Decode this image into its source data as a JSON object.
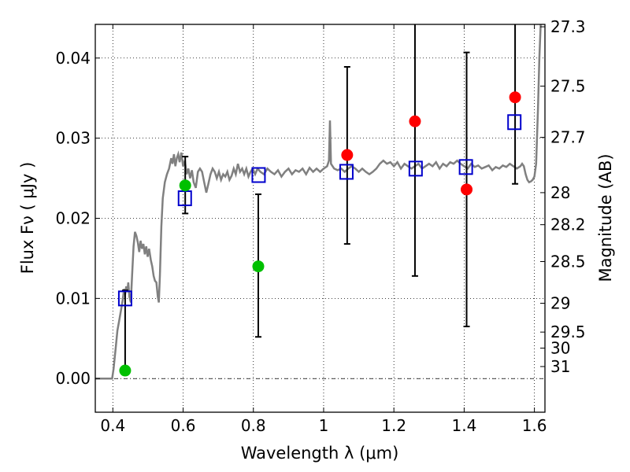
{
  "chart_data": {
    "type": "scatter",
    "title": "",
    "xlabel": "Wavelength  λ (μm)",
    "ylabel": "Flux  Fν  ( μJy )",
    "y2label": "Magnitude (AB)",
    "xlim": [
      0.35,
      1.63
    ],
    "ylim": [
      -0.0042,
      0.0442
    ],
    "grid": true,
    "x_ticks": [
      {
        "value": 0.4,
        "label": "0.4"
      },
      {
        "value": 0.6,
        "label": "0.6"
      },
      {
        "value": 0.8,
        "label": "0.8"
      },
      {
        "value": 1.0,
        "label": "1"
      },
      {
        "value": 1.2,
        "label": "1.2"
      },
      {
        "value": 1.4,
        "label": "1.4"
      },
      {
        "value": 1.6,
        "label": "1.6"
      }
    ],
    "y_ticks": [
      {
        "value": 0.0,
        "label": "0.00"
      },
      {
        "value": 0.01,
        "label": "0.01"
      },
      {
        "value": 0.02,
        "label": "0.02"
      },
      {
        "value": 0.03,
        "label": "0.03"
      },
      {
        "value": 0.04,
        "label": "0.04"
      }
    ],
    "y2_ticks": [
      {
        "label": "27.3",
        "flux": 0.0439
      },
      {
        "label": "27.5",
        "flux": 0.0365
      },
      {
        "label": "27.7",
        "flux": 0.0301
      },
      {
        "label": "28",
        "flux": 0.0232
      },
      {
        "label": "28.2",
        "flux": 0.0192
      },
      {
        "label": "28.5",
        "flux": 0.0146
      },
      {
        "label": "29",
        "flux": 0.0094
      },
      {
        "label": "29.5",
        "flux": 0.0058
      },
      {
        "label": "30",
        "flux": 0.0038
      },
      {
        "label": "31",
        "flux": 0.0015
      }
    ],
    "colors": {
      "model_line": "#808080",
      "observed_point": "#ff0000",
      "observed_point_alt": "#00c000",
      "model_square": "#0000cc",
      "errorbar": "#000000",
      "zero_line": "#000000"
    },
    "model_spectrum": [
      [
        0.35,
        0.0
      ],
      [
        0.38,
        0.0
      ],
      [
        0.398,
        0.0
      ],
      [
        0.402,
        0.0012
      ],
      [
        0.408,
        0.0038
      ],
      [
        0.413,
        0.006
      ],
      [
        0.418,
        0.0072
      ],
      [
        0.423,
        0.0085
      ],
      [
        0.428,
        0.0098
      ],
      [
        0.432,
        0.0112
      ],
      [
        0.435,
        0.0105
      ],
      [
        0.438,
        0.0115
      ],
      [
        0.441,
        0.0108
      ],
      [
        0.444,
        0.012
      ],
      [
        0.447,
        0.0102
      ],
      [
        0.451,
        0.0095
      ],
      [
        0.455,
        0.013
      ],
      [
        0.459,
        0.0165
      ],
      [
        0.463,
        0.0183
      ],
      [
        0.467,
        0.0178
      ],
      [
        0.471,
        0.017
      ],
      [
        0.475,
        0.0158
      ],
      [
        0.479,
        0.0172
      ],
      [
        0.483,
        0.0162
      ],
      [
        0.487,
        0.0168
      ],
      [
        0.491,
        0.0155
      ],
      [
        0.495,
        0.0165
      ],
      [
        0.499,
        0.0152
      ],
      [
        0.503,
        0.0162
      ],
      [
        0.508,
        0.0148
      ],
      [
        0.512,
        0.014
      ],
      [
        0.516,
        0.0128
      ],
      [
        0.52,
        0.0122
      ],
      [
        0.524,
        0.012
      ],
      [
        0.528,
        0.0102
      ],
      [
        0.531,
        0.0095
      ],
      [
        0.534,
        0.013
      ],
      [
        0.538,
        0.019
      ],
      [
        0.542,
        0.0225
      ],
      [
        0.548,
        0.0245
      ],
      [
        0.554,
        0.0255
      ],
      [
        0.56,
        0.0262
      ],
      [
        0.566,
        0.0275
      ],
      [
        0.57,
        0.0268
      ],
      [
        0.574,
        0.028
      ],
      [
        0.578,
        0.0265
      ],
      [
        0.582,
        0.0275
      ],
      [
        0.586,
        0.028
      ],
      [
        0.59,
        0.027
      ],
      [
        0.595,
        0.0282
      ],
      [
        0.6,
        0.0265
      ],
      [
        0.605,
        0.0272
      ],
      [
        0.61,
        0.0255
      ],
      [
        0.615,
        0.0262
      ],
      [
        0.62,
        0.025
      ],
      [
        0.625,
        0.026
      ],
      [
        0.63,
        0.0245
      ],
      [
        0.636,
        0.0238
      ],
      [
        0.642,
        0.0258
      ],
      [
        0.648,
        0.0262
      ],
      [
        0.654,
        0.0258
      ],
      [
        0.66,
        0.0245
      ],
      [
        0.666,
        0.0232
      ],
      [
        0.672,
        0.0243
      ],
      [
        0.678,
        0.0255
      ],
      [
        0.684,
        0.0262
      ],
      [
        0.69,
        0.0258
      ],
      [
        0.696,
        0.025
      ],
      [
        0.702,
        0.0258
      ],
      [
        0.708,
        0.0248
      ],
      [
        0.714,
        0.0255
      ],
      [
        0.72,
        0.0252
      ],
      [
        0.726,
        0.0258
      ],
      [
        0.732,
        0.0248
      ],
      [
        0.738,
        0.0253
      ],
      [
        0.744,
        0.0262
      ],
      [
        0.75,
        0.0255
      ],
      [
        0.756,
        0.0268
      ],
      [
        0.762,
        0.0258
      ],
      [
        0.768,
        0.0262
      ],
      [
        0.774,
        0.0255
      ],
      [
        0.78,
        0.0262
      ],
      [
        0.786,
        0.0252
      ],
      [
        0.792,
        0.0258
      ],
      [
        0.798,
        0.0262
      ],
      [
        0.805,
        0.0255
      ],
      [
        0.812,
        0.0262
      ],
      [
        0.82,
        0.0258
      ],
      [
        0.83,
        0.0255
      ],
      [
        0.84,
        0.0262
      ],
      [
        0.85,
        0.0258
      ],
      [
        0.86,
        0.0255
      ],
      [
        0.87,
        0.026
      ],
      [
        0.88,
        0.0252
      ],
      [
        0.89,
        0.0258
      ],
      [
        0.9,
        0.0262
      ],
      [
        0.91,
        0.0255
      ],
      [
        0.92,
        0.026
      ],
      [
        0.93,
        0.0258
      ],
      [
        0.94,
        0.0262
      ],
      [
        0.95,
        0.0255
      ],
      [
        0.96,
        0.0263
      ],
      [
        0.97,
        0.0258
      ],
      [
        0.98,
        0.0262
      ],
      [
        0.99,
        0.0258
      ],
      [
        1.0,
        0.0262
      ],
      [
        1.01,
        0.0265
      ],
      [
        1.015,
        0.0272
      ],
      [
        1.018,
        0.0322
      ],
      [
        1.021,
        0.0268
      ],
      [
        1.03,
        0.0262
      ],
      [
        1.04,
        0.026
      ],
      [
        1.05,
        0.0262
      ],
      [
        1.06,
        0.0258
      ],
      [
        1.07,
        0.0262
      ],
      [
        1.08,
        0.0265
      ],
      [
        1.09,
        0.0262
      ],
      [
        1.1,
        0.0258
      ],
      [
        1.11,
        0.0262
      ],
      [
        1.12,
        0.0258
      ],
      [
        1.13,
        0.0255
      ],
      [
        1.14,
        0.0258
      ],
      [
        1.15,
        0.0262
      ],
      [
        1.16,
        0.0268
      ],
      [
        1.17,
        0.0272
      ],
      [
        1.18,
        0.0268
      ],
      [
        1.19,
        0.027
      ],
      [
        1.2,
        0.0265
      ],
      [
        1.21,
        0.027
      ],
      [
        1.22,
        0.0262
      ],
      [
        1.23,
        0.0268
      ],
      [
        1.24,
        0.0265
      ],
      [
        1.25,
        0.0262
      ],
      [
        1.26,
        0.0265
      ],
      [
        1.27,
        0.0268
      ],
      [
        1.28,
        0.0262
      ],
      [
        1.29,
        0.0265
      ],
      [
        1.3,
        0.0268
      ],
      [
        1.31,
        0.0265
      ],
      [
        1.32,
        0.027
      ],
      [
        1.33,
        0.0262
      ],
      [
        1.34,
        0.0268
      ],
      [
        1.35,
        0.0265
      ],
      [
        1.36,
        0.027
      ],
      [
        1.37,
        0.0268
      ],
      [
        1.38,
        0.0272
      ],
      [
        1.39,
        0.0268
      ],
      [
        1.4,
        0.0265
      ],
      [
        1.41,
        0.0262
      ],
      [
        1.42,
        0.0268
      ],
      [
        1.43,
        0.0264
      ],
      [
        1.44,
        0.0266
      ],
      [
        1.45,
        0.0262
      ],
      [
        1.46,
        0.0264
      ],
      [
        1.47,
        0.0266
      ],
      [
        1.48,
        0.026
      ],
      [
        1.49,
        0.0264
      ],
      [
        1.5,
        0.0262
      ],
      [
        1.51,
        0.0266
      ],
      [
        1.52,
        0.0264
      ],
      [
        1.53,
        0.0268
      ],
      [
        1.54,
        0.0265
      ],
      [
        1.55,
        0.0262
      ],
      [
        1.56,
        0.0265
      ],
      [
        1.565,
        0.0268
      ],
      [
        1.57,
        0.0265
      ],
      [
        1.575,
        0.0255
      ],
      [
        1.58,
        0.0248
      ],
      [
        1.585,
        0.0245
      ],
      [
        1.59,
        0.0246
      ],
      [
        1.595,
        0.0248
      ],
      [
        1.6,
        0.0252
      ],
      [
        1.605,
        0.0268
      ],
      [
        1.61,
        0.0335
      ],
      [
        1.614,
        0.04
      ],
      [
        1.618,
        0.0442
      ]
    ],
    "observed_points": [
      {
        "x": 0.435,
        "y": 0.001,
        "color": "green",
        "err_low": 0.001,
        "err_high": 0.011
      },
      {
        "x": 0.606,
        "y": 0.0241,
        "color": "green",
        "err_low": 0.0206,
        "err_high": 0.0277
      },
      {
        "x": 0.814,
        "y": 0.014,
        "color": "green",
        "err_low": 0.0052,
        "err_high": 0.023
      },
      {
        "x": 1.067,
        "y": 0.0279,
        "color": "red",
        "err_low": 0.0168,
        "err_high": 0.0389
      },
      {
        "x": 1.26,
        "y": 0.0321,
        "color": "red",
        "err_low": 0.0128,
        "err_high": 0.0442
      },
      {
        "x": 1.407,
        "y": 0.0236,
        "color": "red",
        "err_low": 0.0065,
        "err_high": 0.0407
      },
      {
        "x": 1.545,
        "y": 0.0351,
        "color": "red",
        "err_low": 0.0243,
        "err_high": 0.0442
      }
    ],
    "model_squares": [
      {
        "x": 0.435,
        "y": 0.01
      },
      {
        "x": 0.605,
        "y": 0.0225
      },
      {
        "x": 0.815,
        "y": 0.0254
      },
      {
        "x": 1.065,
        "y": 0.0258
      },
      {
        "x": 1.262,
        "y": 0.0262
      },
      {
        "x": 1.405,
        "y": 0.0264
      },
      {
        "x": 1.543,
        "y": 0.032
      }
    ]
  }
}
